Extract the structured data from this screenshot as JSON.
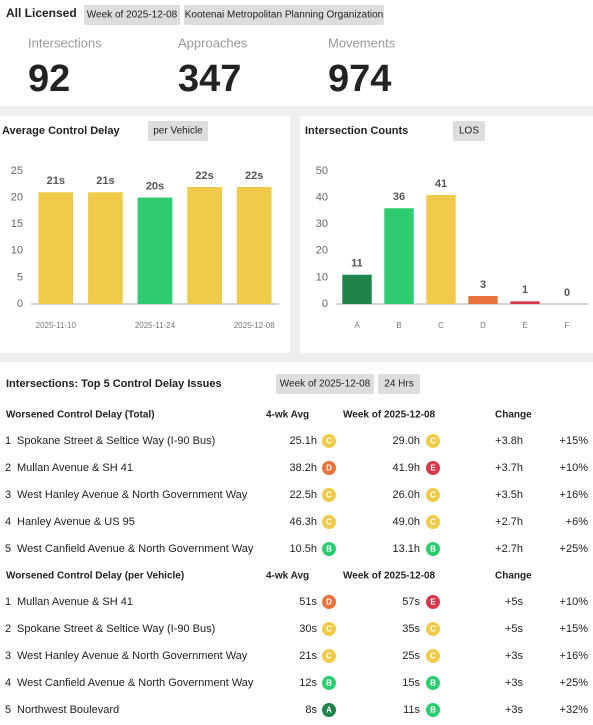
{
  "header": {
    "title": "All Licensed",
    "tags": [
      "Week of 2025-12-08",
      "Kootenai Metropolitan Planning Organization"
    ]
  },
  "kpis": [
    {
      "label": "Intersections",
      "value": 92
    },
    {
      "label": "Approaches",
      "value": 347
    },
    {
      "label": "Movements",
      "value": 974
    }
  ],
  "delay_chart": {
    "type": "bar",
    "title": "Average Control Delay",
    "button": "per Vehicle",
    "categories": [
      "2025-11-10",
      null,
      "2025-11-24",
      null,
      "2025-12-08"
    ],
    "values": [
      21,
      21,
      20,
      22,
      22
    ],
    "value_labels": [
      "21s",
      "21s",
      "20s",
      "22s",
      "22s"
    ],
    "colors": [
      "#f0cb4b",
      "#f0cb4b",
      "#2ecc71",
      "#f0cb4b",
      "#f0cb4b"
    ],
    "ylim": [
      0,
      25
    ],
    "yticks": [
      0,
      5,
      10,
      15,
      20,
      25
    ]
  },
  "count_chart": {
    "type": "bar",
    "title": "Intersection Counts",
    "button": "LOS",
    "categories": [
      "A",
      "B",
      "C",
      "D",
      "E",
      "F"
    ],
    "values": [
      11,
      36,
      41,
      3,
      1,
      0
    ],
    "colors": [
      "#1e8449",
      "#2ecc71",
      "#f0cb4b",
      "#e8743b",
      "#d63a4a",
      "#999999"
    ],
    "ylim": [
      0,
      50
    ],
    "yticks": [
      0,
      10,
      20,
      30,
      40,
      50
    ]
  },
  "issues": {
    "title": "Intersections: Top 5 Control Delay Issues",
    "tags": [
      "Week of 2025-12-08",
      "24 Hrs"
    ],
    "grade_colors": {
      "A": "#1e8449",
      "B": "#2ecc71",
      "C": "#f0cb4b",
      "D": "#e8743b",
      "E": "#d63a4a"
    },
    "tables": [
      {
        "headers": [
          "Worsened Control Delay (Total)",
          "4-wk Avg",
          "Week of 2025-12-08",
          "Change"
        ],
        "rows": [
          {
            "rank": "1",
            "name": "Spokane Street & Seltice Way (I-90 Bus)",
            "avg": "25.1h",
            "avg_grade": "C",
            "week": "29.0h",
            "week_grade": "C",
            "change": "+3.8h",
            "pct": "+15%"
          },
          {
            "rank": "2",
            "name": "Mullan Avenue & SH 41",
            "avg": "38.2h",
            "avg_grade": "D",
            "week": "41.9h",
            "week_grade": "E",
            "change": "+3.7h",
            "pct": "+10%"
          },
          {
            "rank": "3",
            "name": "West Hanley Avenue & North Government Way",
            "avg": "22.5h",
            "avg_grade": "C",
            "week": "26.0h",
            "week_grade": "C",
            "change": "+3.5h",
            "pct": "+16%"
          },
          {
            "rank": "4",
            "name": "Hanley Avenue & US 95",
            "avg": "46.3h",
            "avg_grade": "C",
            "week": "49.0h",
            "week_grade": "C",
            "change": "+2.7h",
            "pct": "+6%"
          },
          {
            "rank": "5",
            "name": "West Canfield Avenue & North Government Way",
            "avg": "10.5h",
            "avg_grade": "B",
            "week": "13.1h",
            "week_grade": "B",
            "change": "+2.7h",
            "pct": "+25%"
          }
        ]
      },
      {
        "headers": [
          "Worsened Control Delay (per Vehicle)",
          "4-wk Avg",
          "Week of 2025-12-08",
          "Change"
        ],
        "rows": [
          {
            "rank": "1",
            "name": "Mullan Avenue & SH 41",
            "avg": "51s",
            "avg_grade": "D",
            "week": "57s",
            "week_grade": "E",
            "change": "+5s",
            "pct": "+10%"
          },
          {
            "rank": "2",
            "name": "Spokane Street & Seltice Way (I-90 Bus)",
            "avg": "30s",
            "avg_grade": "C",
            "week": "35s",
            "week_grade": "C",
            "change": "+5s",
            "pct": "+15%"
          },
          {
            "rank": "3",
            "name": "West Hanley Avenue & North Government Way",
            "avg": "21s",
            "avg_grade": "C",
            "week": "25s",
            "week_grade": "C",
            "change": "+3s",
            "pct": "+16%"
          },
          {
            "rank": "4",
            "name": "West Canfield Avenue & North Government Way",
            "avg": "12s",
            "avg_grade": "B",
            "week": "15s",
            "week_grade": "B",
            "change": "+3s",
            "pct": "+25%"
          },
          {
            "rank": "5",
            "name": "Northwest Boulevard",
            "avg": "8s",
            "avg_grade": "A",
            "week": "11s",
            "week_grade": "B",
            "change": "+3s",
            "pct": "+32%"
          }
        ]
      }
    ]
  }
}
